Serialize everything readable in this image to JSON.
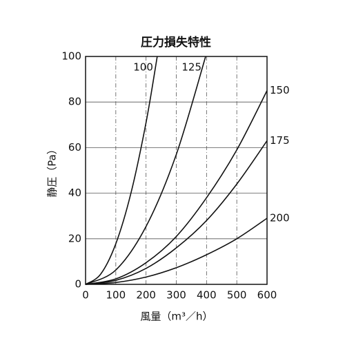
{
  "chart_data": {
    "type": "line",
    "title": "圧力損失特性",
    "x_label": "風量（m³／h）",
    "y_label": "静圧（Pa）",
    "xlim": [
      0,
      600
    ],
    "ylim": [
      0,
      100
    ],
    "xticks": [
      0,
      100,
      200,
      300,
      400,
      500,
      600
    ],
    "yticks": [
      0,
      20,
      40,
      60,
      80,
      100
    ],
    "grid": true,
    "series": [
      {
        "name": "100",
        "color": "#111111",
        "x": [
          0,
          50,
          100,
          150,
          200,
          237
        ],
        "values": [
          0,
          4.5,
          17.8,
          40,
          71,
          100
        ]
      },
      {
        "name": "125",
        "color": "#111111",
        "x": [
          0,
          100,
          200,
          300,
          397
        ],
        "values": [
          0,
          6.3,
          25.4,
          57,
          100
        ]
      },
      {
        "name": "150",
        "color": "#111111",
        "x": [
          0,
          100,
          200,
          300,
          400,
          500,
          600
        ],
        "values": [
          0,
          2.4,
          9.5,
          21,
          38,
          59,
          85
        ]
      },
      {
        "name": "175",
        "color": "#111111",
        "x": [
          0,
          100,
          200,
          300,
          400,
          500,
          600
        ],
        "values": [
          0,
          1.75,
          7,
          16,
          28,
          44,
          63
        ]
      },
      {
        "name": "200",
        "color": "#111111",
        "x": [
          0,
          100,
          200,
          300,
          400,
          500,
          600
        ],
        "values": [
          0,
          0.8,
          3.2,
          7.3,
          13,
          20,
          29
        ]
      }
    ]
  }
}
